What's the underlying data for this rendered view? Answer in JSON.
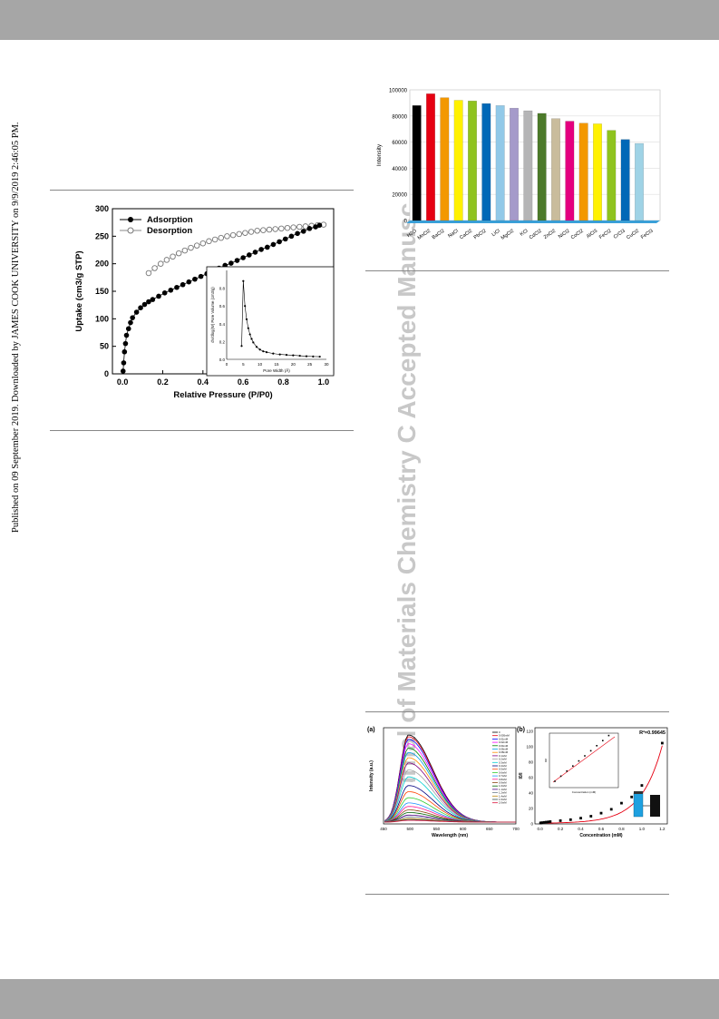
{
  "sidebar_text": "Published on 09 September 2019. Downloaded by JAMES COOK UNIVERSITY on 9/9/2019 2:46:05 PM.",
  "watermark": "Journal of Materials Chemistry C Accepted Manuscript",
  "colors": {
    "header_bar": "#a6a6a6",
    "watermark": "#c8c8c8"
  },
  "figures": {
    "isotherm": {
      "chart_data": {
        "type": "scatter",
        "xlabel": "Relative Pressure (P/P0)",
        "ylabel": "Uptake (cm3/g STP)",
        "xlim": [
          -0.05,
          1.05
        ],
        "ylim": [
          0,
          300
        ],
        "xticks": [
          "0.0",
          "0.2",
          "0.4",
          "0.6",
          "0.8",
          "1.0"
        ],
        "yticks": [
          "0",
          "50",
          "100",
          "150",
          "200",
          "250",
          "300"
        ],
        "legend_position": "top-left",
        "series": [
          {
            "name": "Adsorption",
            "marker": "filled",
            "x": [
              0.003,
              0.006,
              0.01,
              0.015,
              0.02,
              0.03,
              0.04,
              0.05,
              0.07,
              0.09,
              0.11,
              0.13,
              0.15,
              0.18,
              0.21,
              0.24,
              0.27,
              0.3,
              0.33,
              0.36,
              0.39,
              0.42,
              0.45,
              0.48,
              0.51,
              0.54,
              0.57,
              0.6,
              0.63,
              0.66,
              0.69,
              0.72,
              0.75,
              0.78,
              0.81,
              0.84,
              0.87,
              0.9,
              0.93,
              0.96,
              0.98
            ],
            "y": [
              5,
              20,
              40,
              55,
              70,
              82,
              93,
              102,
              112,
              120,
              126,
              131,
              135,
              141,
              147,
              152,
              157,
              162,
              167,
              172,
              177,
              182,
              187,
              192,
              197,
              201,
              206,
              211,
              216,
              221,
              226,
              230,
              235,
              240,
              245,
              250,
              255,
              259,
              264,
              267,
              270
            ]
          },
          {
            "name": "Desorption",
            "marker": "open",
            "x": [
              0.13,
              0.16,
              0.19,
              0.22,
              0.25,
              0.28,
              0.31,
              0.34,
              0.37,
              0.4,
              0.43,
              0.46,
              0.49,
              0.52,
              0.55,
              0.58,
              0.61,
              0.64,
              0.67,
              0.7,
              0.73,
              0.76,
              0.79,
              0.82,
              0.85,
              0.88,
              0.91,
              0.94,
              0.97,
              1.0
            ],
            "y": [
              183,
              192,
              200,
              207,
              213,
              219,
              224,
              229,
              233,
              237,
              241,
              244,
              247,
              250,
              252,
              254,
              256,
              258,
              260,
              261,
              262,
              263,
              264,
              265,
              266,
              267,
              268,
              269,
              270,
              271
            ]
          }
        ]
      },
      "inset": {
        "xlabel": "Pore Width (Å)",
        "ylabel": "dV/dlog(W) Pore Volume (cm3/g)",
        "xlim": [
          0,
          30
        ],
        "ylim": [
          0,
          1.0
        ],
        "xticks": [
          "0",
          "5",
          "10",
          "15",
          "20",
          "25",
          "30"
        ],
        "yticks": [
          "0.0",
          "0.2",
          "0.4",
          "0.6",
          "0.8"
        ],
        "x": [
          4.5,
          5,
          5.5,
          6,
          6.5,
          7,
          7.5,
          8,
          9,
          10,
          11,
          12,
          14,
          16,
          18,
          20,
          22,
          24,
          26,
          28
        ],
        "y": [
          0.15,
          0.88,
          0.6,
          0.45,
          0.35,
          0.28,
          0.23,
          0.19,
          0.14,
          0.11,
          0.09,
          0.08,
          0.065,
          0.055,
          0.05,
          0.045,
          0.04,
          0.035,
          0.032,
          0.03
        ]
      }
    },
    "bars": {
      "chart_data": {
        "type": "bar",
        "ylabel": "Intensity",
        "ylim": [
          0,
          100000
        ],
        "yticks": [
          "0",
          "20000",
          "40000",
          "60000",
          "80000",
          "100000"
        ],
        "categories": [
          "H2O",
          "MnCl2",
          "BaCl2",
          "NaCl",
          "CaCl2",
          "PbCl2",
          "LiCl",
          "MgCl2",
          "KCl",
          "CdCl2",
          "ZnCl2",
          "NiCl2",
          "CoCl2",
          "AlCl3",
          "FeCl2",
          "CrCl3",
          "CuCl2",
          "FeCl3"
        ],
        "values": [
          88000,
          97000,
          94000,
          92000,
          91500,
          89500,
          88000,
          86000,
          84000,
          82000,
          78000,
          76000,
          74500,
          74000,
          69000,
          62000,
          59000,
          0
        ],
        "colors": [
          "#000000",
          "#e60012",
          "#f39800",
          "#fff100",
          "#8fc31f",
          "#0068b7",
          "#92c9e8",
          "#a59aca",
          "#b5b5b6",
          "#4c7a2a",
          "#c9bc9c",
          "#e4007f",
          "#f39800",
          "#fff100",
          "#8fc31f",
          "#0068b7",
          "#9fd3e6",
          "#9fd3e6"
        ]
      }
    },
    "fluor_a": {
      "panel_label": "(a)",
      "chart_data": {
        "type": "line",
        "xlabel": "Wavelength (nm)",
        "ylabel": "Intensity (a.u.)",
        "xlim": [
          450,
          700
        ],
        "xticks": [
          "450",
          "500",
          "550",
          "600",
          "650",
          "700"
        ],
        "series_peaks": [
          1.0,
          0.98,
          0.95,
          0.9,
          0.85,
          0.8,
          0.74,
          0.68,
          0.6,
          0.52,
          0.42,
          0.35,
          0.28,
          0.22,
          0.18,
          0.14,
          0.11,
          0.08,
          0.06,
          0.04,
          0.03,
          0.02
        ],
        "series_colors": [
          "#000000",
          "#e60012",
          "#0000ff",
          "#ff00ff",
          "#008000",
          "#00a0e9",
          "#ff8c00",
          "#800080",
          "#a0a0a0",
          "#00ced1",
          "#000080",
          "#ff4500",
          "#32cd32",
          "#1e90ff",
          "#ff1493",
          "#8b4513",
          "#006400",
          "#4b0082",
          "#708090",
          "#b8860b",
          "#2f4f4f",
          "#dc143c"
        ]
      },
      "legend": [
        "0",
        "0.005mM",
        "0.01mM",
        "0.02mM",
        "0.04mM",
        "0.06mM",
        "0.08mM",
        "0.1mM",
        "0.2mM",
        "0.3mM",
        "0.4mM",
        "0.5mM",
        "0.6mM",
        "0.7mM",
        "0.8mM",
        "0.9mM",
        "1.0mM",
        "1.1mM",
        "1.2mM",
        "1.4mM",
        "1.6mM",
        "2.0mM"
      ]
    },
    "fluor_b": {
      "panel_label": "(b)",
      "r2_label": "R²=0.99645",
      "chart_data": {
        "type": "scatter",
        "xlabel": "Concentration (mM)",
        "ylabel": "I0/I",
        "xlim": [
          -0.05,
          1.25
        ],
        "ylim": [
          0,
          125
        ],
        "xticks": [
          "0.0",
          "0.2",
          "0.4",
          "0.6",
          "0.8",
          "1.0",
          "1.2"
        ],
        "yticks": [
          "0",
          "20",
          "40",
          "60",
          "80",
          "100",
          "120"
        ],
        "x": [
          0.005,
          0.01,
          0.02,
          0.04,
          0.06,
          0.08,
          0.1,
          0.2,
          0.3,
          0.4,
          0.5,
          0.6,
          0.7,
          0.8,
          0.9,
          1.0,
          1.2
        ],
        "y": [
          1.2,
          1.4,
          1.6,
          2.0,
          2.3,
          2.6,
          3.0,
          4.2,
          5.5,
          7.5,
          10,
          14,
          19,
          27,
          35,
          50,
          105
        ]
      },
      "inset": {
        "xlabel": "Concentration (mM)",
        "ylabel": "I0/I"
      }
    }
  }
}
